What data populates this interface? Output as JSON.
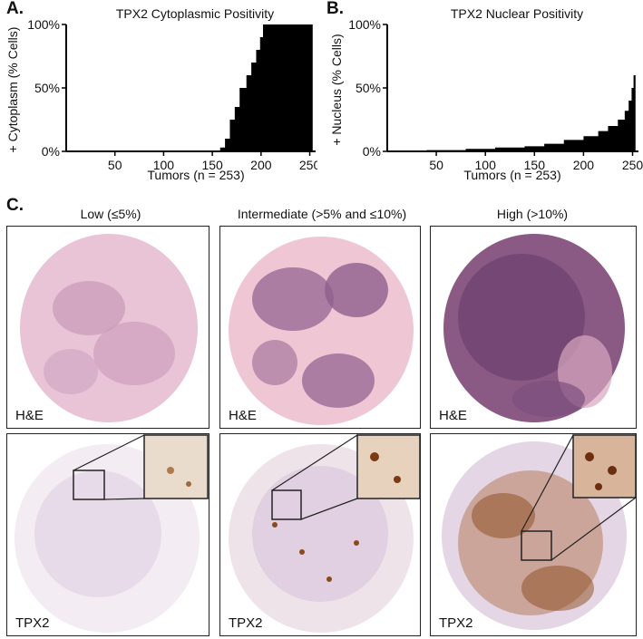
{
  "panels": {
    "a": {
      "letter": "A.",
      "title": "TPX2 Cytoplasmic Positivity",
      "ylabel": "+ Cytoplasm (% Cells)",
      "xlabel": "Tumors (n = 253)"
    },
    "b": {
      "letter": "B.",
      "title": "TPX2 Nuclear Positivity",
      "ylabel": "+ Nucleus (% Cells)",
      "xlabel": "Tumors (n = 253)"
    },
    "c": {
      "letter": "C.",
      "columns": [
        "Low (≤5%)",
        "Intermediate (>5% and ≤10%)",
        "High (>10%)"
      ],
      "row_labels": [
        "H&E",
        "TPX2"
      ]
    }
  },
  "chart_data": [
    {
      "type": "area",
      "title": "TPX2 Cytoplasmic Positivity",
      "xlabel": "Tumors (n = 253)",
      "ylabel": "+ Cytoplasm (% Cells)",
      "x": [
        1,
        150,
        158,
        163,
        168,
        173,
        178,
        185,
        190,
        195,
        199,
        202,
        230,
        253
      ],
      "y": [
        0,
        0,
        3,
        10,
        25,
        35,
        50,
        60,
        70,
        80,
        90,
        100,
        100,
        100
      ],
      "xlim": [
        0,
        256
      ],
      "ylim": [
        0,
        100
      ],
      "xticks": [
        "50",
        "100",
        "150",
        "200",
        "250"
      ],
      "yticks": [
        "0%",
        "50%",
        "100%"
      ]
    },
    {
      "type": "area",
      "title": "TPX2 Nuclear Positivity",
      "xlabel": "Tumors (n = 253)",
      "ylabel": "+ Nucleus (% Cells)",
      "x": [
        1,
        40,
        80,
        110,
        140,
        160,
        180,
        200,
        215,
        225,
        235,
        242,
        246,
        249,
        251,
        253
      ],
      "y": [
        0,
        1,
        2,
        3,
        4,
        6,
        9,
        12,
        16,
        20,
        25,
        32,
        40,
        50,
        60,
        65
      ],
      "xlim": [
        0,
        256
      ],
      "ylim": [
        0,
        100
      ],
      "xticks": [
        "50",
        "100",
        "150",
        "200",
        "250"
      ],
      "yticks": [
        "0%",
        "50%",
        "100%"
      ]
    }
  ]
}
